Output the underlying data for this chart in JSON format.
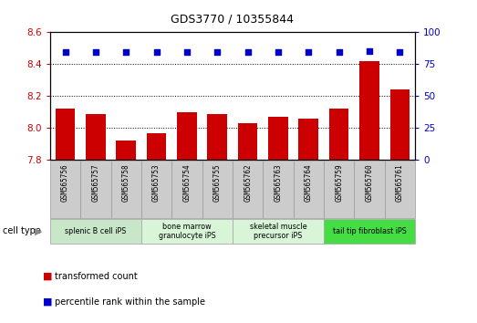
{
  "title": "GDS3770 / 10355844",
  "samples": [
    "GSM565756",
    "GSM565757",
    "GSM565758",
    "GSM565753",
    "GSM565754",
    "GSM565755",
    "GSM565762",
    "GSM565763",
    "GSM565764",
    "GSM565759",
    "GSM565760",
    "GSM565761"
  ],
  "bar_values": [
    8.12,
    8.09,
    7.92,
    7.97,
    8.1,
    8.09,
    8.03,
    8.07,
    8.06,
    8.12,
    8.42,
    8.24
  ],
  "scatter_values": [
    84.5,
    84.7,
    84.2,
    84.4,
    84.5,
    84.5,
    84.2,
    84.3,
    84.3,
    84.5,
    85.0,
    84.5
  ],
  "ylim_left": [
    7.8,
    8.6
  ],
  "ylim_right": [
    0,
    100
  ],
  "yticks_left": [
    7.8,
    8.0,
    8.2,
    8.4,
    8.6
  ],
  "yticks_right": [
    0,
    25,
    50,
    75,
    100
  ],
  "bar_color": "#cc0000",
  "scatter_color": "#0000cc",
  "cell_groups": [
    {
      "label": "splenic B cell iPS",
      "start": 0,
      "end": 3,
      "color": "#c8e6c8"
    },
    {
      "label": "bone marrow\ngranulocyte iPS",
      "start": 3,
      "end": 6,
      "color": "#d8f5d8"
    },
    {
      "label": "skeletal muscle\nprecursor iPS",
      "start": 6,
      "end": 9,
      "color": "#d8f5d8"
    },
    {
      "label": "tail tip fibroblast iPS",
      "start": 9,
      "end": 12,
      "color": "#44dd44"
    }
  ],
  "cell_type_label": "cell type",
  "legend_bar_label": "transformed count",
  "legend_scatter_label": "percentile rank within the sample",
  "tick_color_left": "#cc0000",
  "tick_color_right": "#0000cc",
  "bar_width": 0.65,
  "sample_bg_color": "#cccccc",
  "sample_bg_edge": "#999999"
}
